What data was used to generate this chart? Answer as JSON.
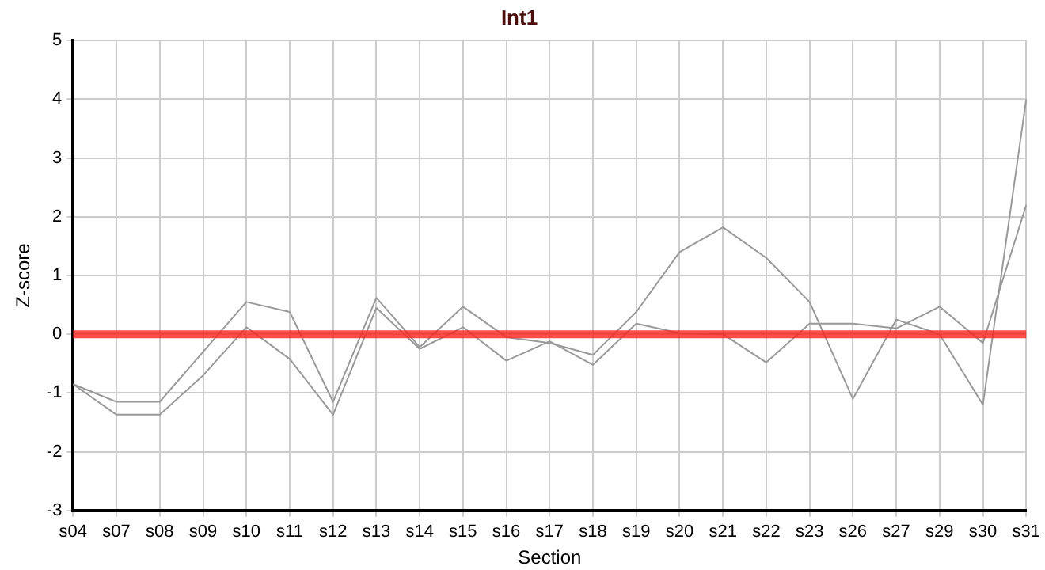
{
  "chart_data": {
    "type": "line",
    "title": "Int1",
    "xlabel": "Section",
    "ylabel": "Z-score",
    "categories": [
      "s04",
      "s07",
      "s08",
      "s09",
      "s10",
      "s11",
      "s12",
      "s13",
      "s14",
      "s15",
      "s16",
      "s17",
      "s18",
      "s19",
      "s20",
      "s21",
      "s22",
      "s23",
      "s26",
      "s27",
      "s29",
      "s30",
      "s31"
    ],
    "series": [
      {
        "color": "#999999",
        "values": [
          -0.85,
          -1.15,
          -1.15,
          -0.3,
          0.55,
          0.38,
          -1.15,
          0.62,
          -0.22,
          0.47,
          -0.05,
          -0.15,
          -0.35,
          0.38,
          1.4,
          1.82,
          1.3,
          0.55,
          -1.1,
          0.25,
          0.0,
          -1.2,
          4.0
        ]
      },
      {
        "color": "#999999",
        "values": [
          -0.85,
          -1.37,
          -1.37,
          -0.7,
          0.12,
          -0.42,
          -1.37,
          0.45,
          -0.25,
          0.12,
          -0.45,
          -0.12,
          -0.52,
          0.18,
          0.02,
          0.0,
          -0.48,
          0.18,
          0.18,
          0.1,
          0.47,
          -0.15,
          2.2
        ]
      }
    ],
    "ylim": [
      -3,
      5
    ],
    "yticks": [
      -3,
      -2,
      -1,
      0,
      1,
      2,
      3,
      4,
      5
    ],
    "ref_lines": [
      {
        "axis": "y",
        "value": 0,
        "color": "#ff2020"
      }
    ],
    "grid": true,
    "legend": false,
    "marker": "none",
    "line_style": "solid"
  }
}
